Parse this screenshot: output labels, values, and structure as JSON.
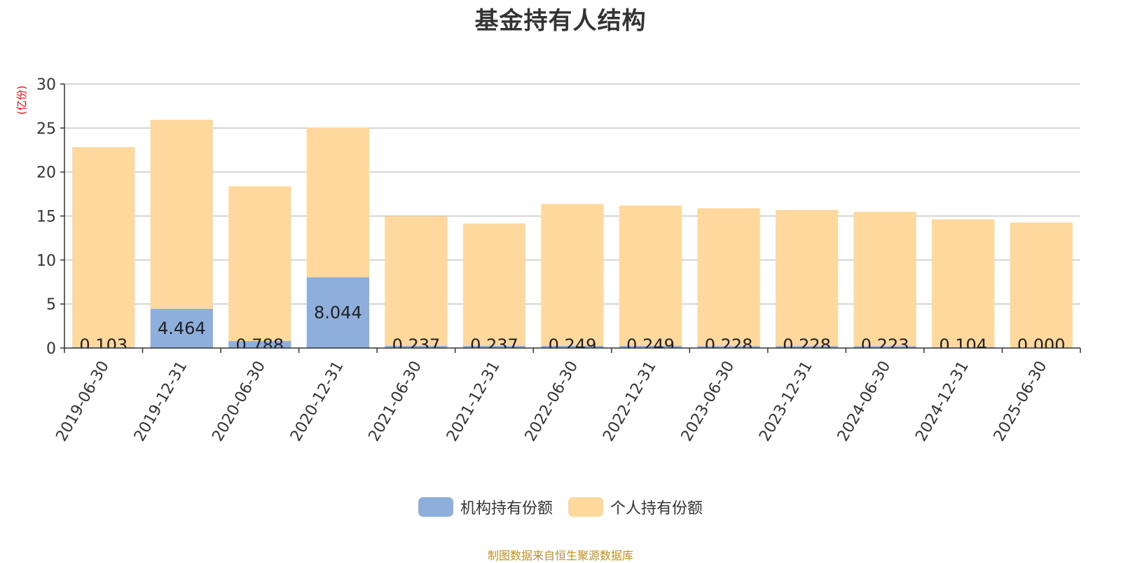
{
  "chart_data": {
    "type": "bar",
    "stacked": true,
    "title": "基金持有人结构",
    "ylabel": "(亿份)",
    "xlabel": "",
    "ylim": [
      0,
      30
    ],
    "yticks": [
      0,
      5,
      10,
      15,
      20,
      25,
      30
    ],
    "grid": true,
    "legend_position": "bottom",
    "categories": [
      "2019-06-30",
      "2019-12-31",
      "2020-06-30",
      "2020-12-31",
      "2021-06-30",
      "2021-12-31",
      "2022-06-30",
      "2022-12-31",
      "2023-06-30",
      "2023-12-31",
      "2024-06-30",
      "2024-12-31",
      "2025-06-30"
    ],
    "series": [
      {
        "name": "机构持有份额",
        "color": "#8eaedc",
        "values": [
          0.103,
          4.464,
          0.788,
          8.044,
          0.237,
          0.237,
          0.249,
          0.249,
          0.228,
          0.228,
          0.223,
          0.104,
          0.0
        ],
        "labels": [
          "0.103",
          "4.464",
          "0.788",
          "8.044",
          "0.237",
          "0.237",
          "0.249",
          "0.249",
          "0.228",
          "0.228",
          "0.223",
          "0.104",
          "0.000"
        ]
      },
      {
        "name": "个人持有份额",
        "color": "#fed89c",
        "values": [
          22.72,
          21.47,
          17.59,
          17.01,
          14.73,
          13.91,
          16.12,
          15.94,
          15.65,
          15.46,
          15.25,
          14.52,
          14.26
        ]
      }
    ]
  },
  "legend": {
    "items": [
      "机构持有份额",
      "个人持有份额"
    ]
  },
  "source_note": "制图数据来自恒生聚源数据库"
}
